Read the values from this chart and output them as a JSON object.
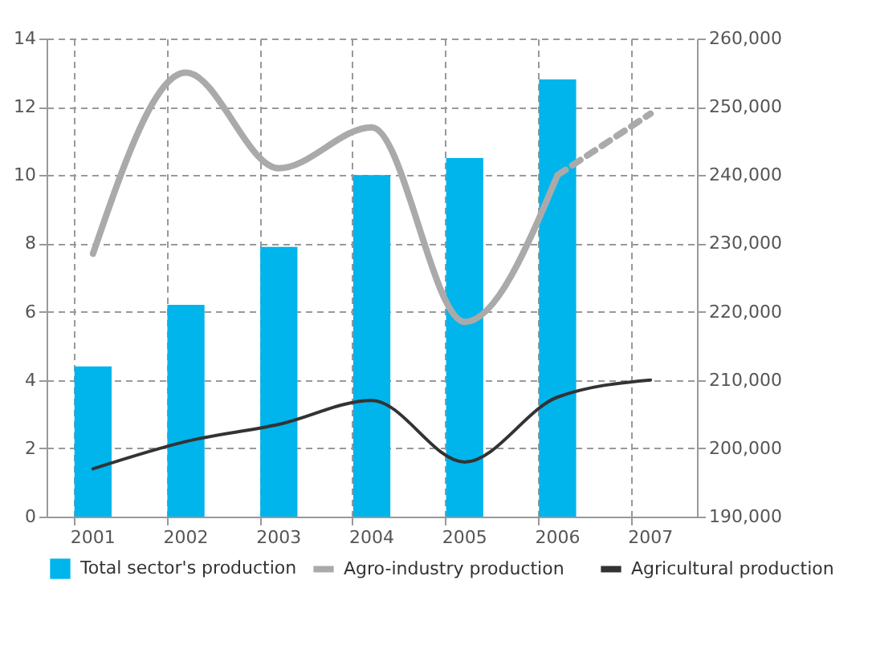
{
  "chart_data": {
    "type": "bar",
    "categories": [
      "2001",
      "2002",
      "2003",
      "2004",
      "2005",
      "2006",
      "2007"
    ],
    "series": [
      {
        "name": "Total sector's production",
        "color": "#00b4ec",
        "values": [
          4.4,
          6.2,
          7.9,
          10.0,
          10.5,
          12.8,
          null
        ]
      },
      {
        "name": "Agro-industry production",
        "type": "line",
        "axis": "y2",
        "color": "#aaaaaa",
        "values": [
          228500,
          255000,
          241000,
          247000,
          218500,
          240000,
          null
        ]
      },
      {
        "type": "line",
        "axis": "y2",
        "color": "#aaaaaa",
        "line_style": "dashed",
        "values": [
          null,
          null,
          null,
          null,
          null,
          240000,
          249000
        ]
      },
      {
        "name": "Agricultural production",
        "type": "line",
        "axis": "y2",
        "color": "#333333",
        "values": [
          197000,
          201000,
          203500,
          207000,
          198000,
          207500,
          210000
        ]
      }
    ],
    "ylim": [
      0,
      14
    ],
    "yticks": [
      0,
      2,
      4,
      6,
      8,
      10,
      12,
      14
    ],
    "y2lim": [
      190000,
      260000
    ],
    "y2ticks": [
      {
        "value": 190000,
        "label": "190,000"
      },
      {
        "value": 200000,
        "label": "200,000"
      },
      {
        "value": 210000,
        "label": "210,000"
      },
      {
        "value": 220000,
        "label": "220,000"
      },
      {
        "value": 230000,
        "label": "230,000"
      },
      {
        "value": 240000,
        "label": "240,000"
      },
      {
        "value": 250000,
        "label": "250,000"
      },
      {
        "value": 260000,
        "label": "260,000"
      }
    ],
    "grid": true,
    "legend": "bottom"
  }
}
